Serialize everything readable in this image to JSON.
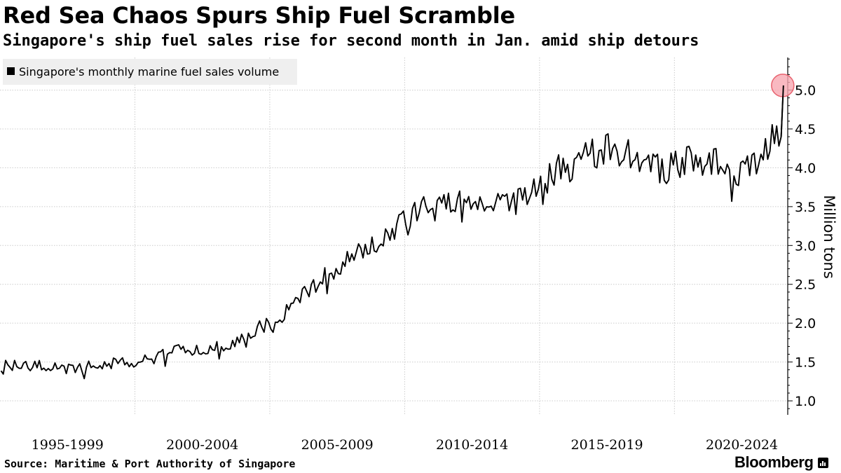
{
  "title": "Red Sea Chaos Spurs Ship Fuel Scramble",
  "subtitle": "Singapore's ship fuel sales rise for second month in Jan. amid ship detours",
  "source": "Source: Maritime & Port Authority of Singapore",
  "brand": "Bloomberg",
  "colors": {
    "line": "#000000",
    "highlight_fill": "#f7a7b2",
    "highlight_stroke": "#e8636f",
    "grid": "#cccccc",
    "legend_bg": "#efefef"
  },
  "chart_data": {
    "type": "line",
    "title": "Red Sea Chaos Spurs Ship Fuel Scramble",
    "subtitle": "Singapore's ship fuel sales rise for second month in Jan. amid ship detours",
    "xlabel": "",
    "ylabel": "Million tons",
    "legend": "Singapore's monthly marine fuel sales volume",
    "legend_position": "top-left",
    "x_start": "1995-01",
    "x_end": "2024-01",
    "frequency": "monthly",
    "xlim": [
      1995.0,
      2024.2
    ],
    "ylim": [
      0.82,
      5.42
    ],
    "y_ticks": [
      "1.0",
      "1.5",
      "2.0",
      "2.5",
      "3.0",
      "3.5",
      "4.0",
      "4.5",
      "5.0"
    ],
    "x_ticks": [
      "1995-1999",
      "2000-2004",
      "2005-2009",
      "2010-2014",
      "2015-2019",
      "2020-2024"
    ],
    "x_tick_centers": [
      1997.5,
      2002.5,
      2007.5,
      2012.5,
      2017.5,
      2022.5
    ],
    "x_grid": [
      2000,
      2005,
      2010,
      2015,
      2020
    ],
    "grid": true,
    "highlight": {
      "date": "2024-01",
      "value": 5.06
    },
    "yearly_levels": [
      {
        "year": 1995,
        "value": 1.45
      },
      {
        "year": 1996,
        "value": 1.45
      },
      {
        "year": 1997,
        "value": 1.42
      },
      {
        "year": 1998,
        "value": 1.45
      },
      {
        "year": 1999,
        "value": 1.5
      },
      {
        "year": 2000,
        "value": 1.52
      },
      {
        "year": 2001,
        "value": 1.65
      },
      {
        "year": 2002,
        "value": 1.68
      },
      {
        "year": 2003,
        "value": 1.7
      },
      {
        "year": 2004,
        "value": 1.92
      },
      {
        "year": 2005,
        "value": 2.12
      },
      {
        "year": 2006,
        "value": 2.45
      },
      {
        "year": 2007,
        "value": 2.75
      },
      {
        "year": 2008,
        "value": 2.95
      },
      {
        "year": 2009,
        "value": 3.15
      },
      {
        "year": 2010,
        "value": 3.5
      },
      {
        "year": 2011,
        "value": 3.62
      },
      {
        "year": 2012,
        "value": 3.52
      },
      {
        "year": 2013,
        "value": 3.55
      },
      {
        "year": 2014,
        "value": 3.6
      },
      {
        "year": 2015,
        "value": 3.95
      },
      {
        "year": 2016,
        "value": 4.1
      },
      {
        "year": 2017,
        "value": 4.25
      },
      {
        "year": 2018,
        "value": 4.15
      },
      {
        "year": 2019,
        "value": 3.95
      },
      {
        "year": 2020,
        "value": 4.1
      },
      {
        "year": 2021,
        "value": 4.1
      },
      {
        "year": 2022,
        "value": 3.9
      },
      {
        "year": 2023,
        "value": 4.3
      },
      {
        "year": 2024,
        "value": 5.06
      }
    ],
    "end_values": [
      {
        "date": "2023-11",
        "value": 4.28
      },
      {
        "date": "2023-12",
        "value": 4.4
      },
      {
        "date": "2024-01",
        "value": 5.06
      }
    ]
  }
}
